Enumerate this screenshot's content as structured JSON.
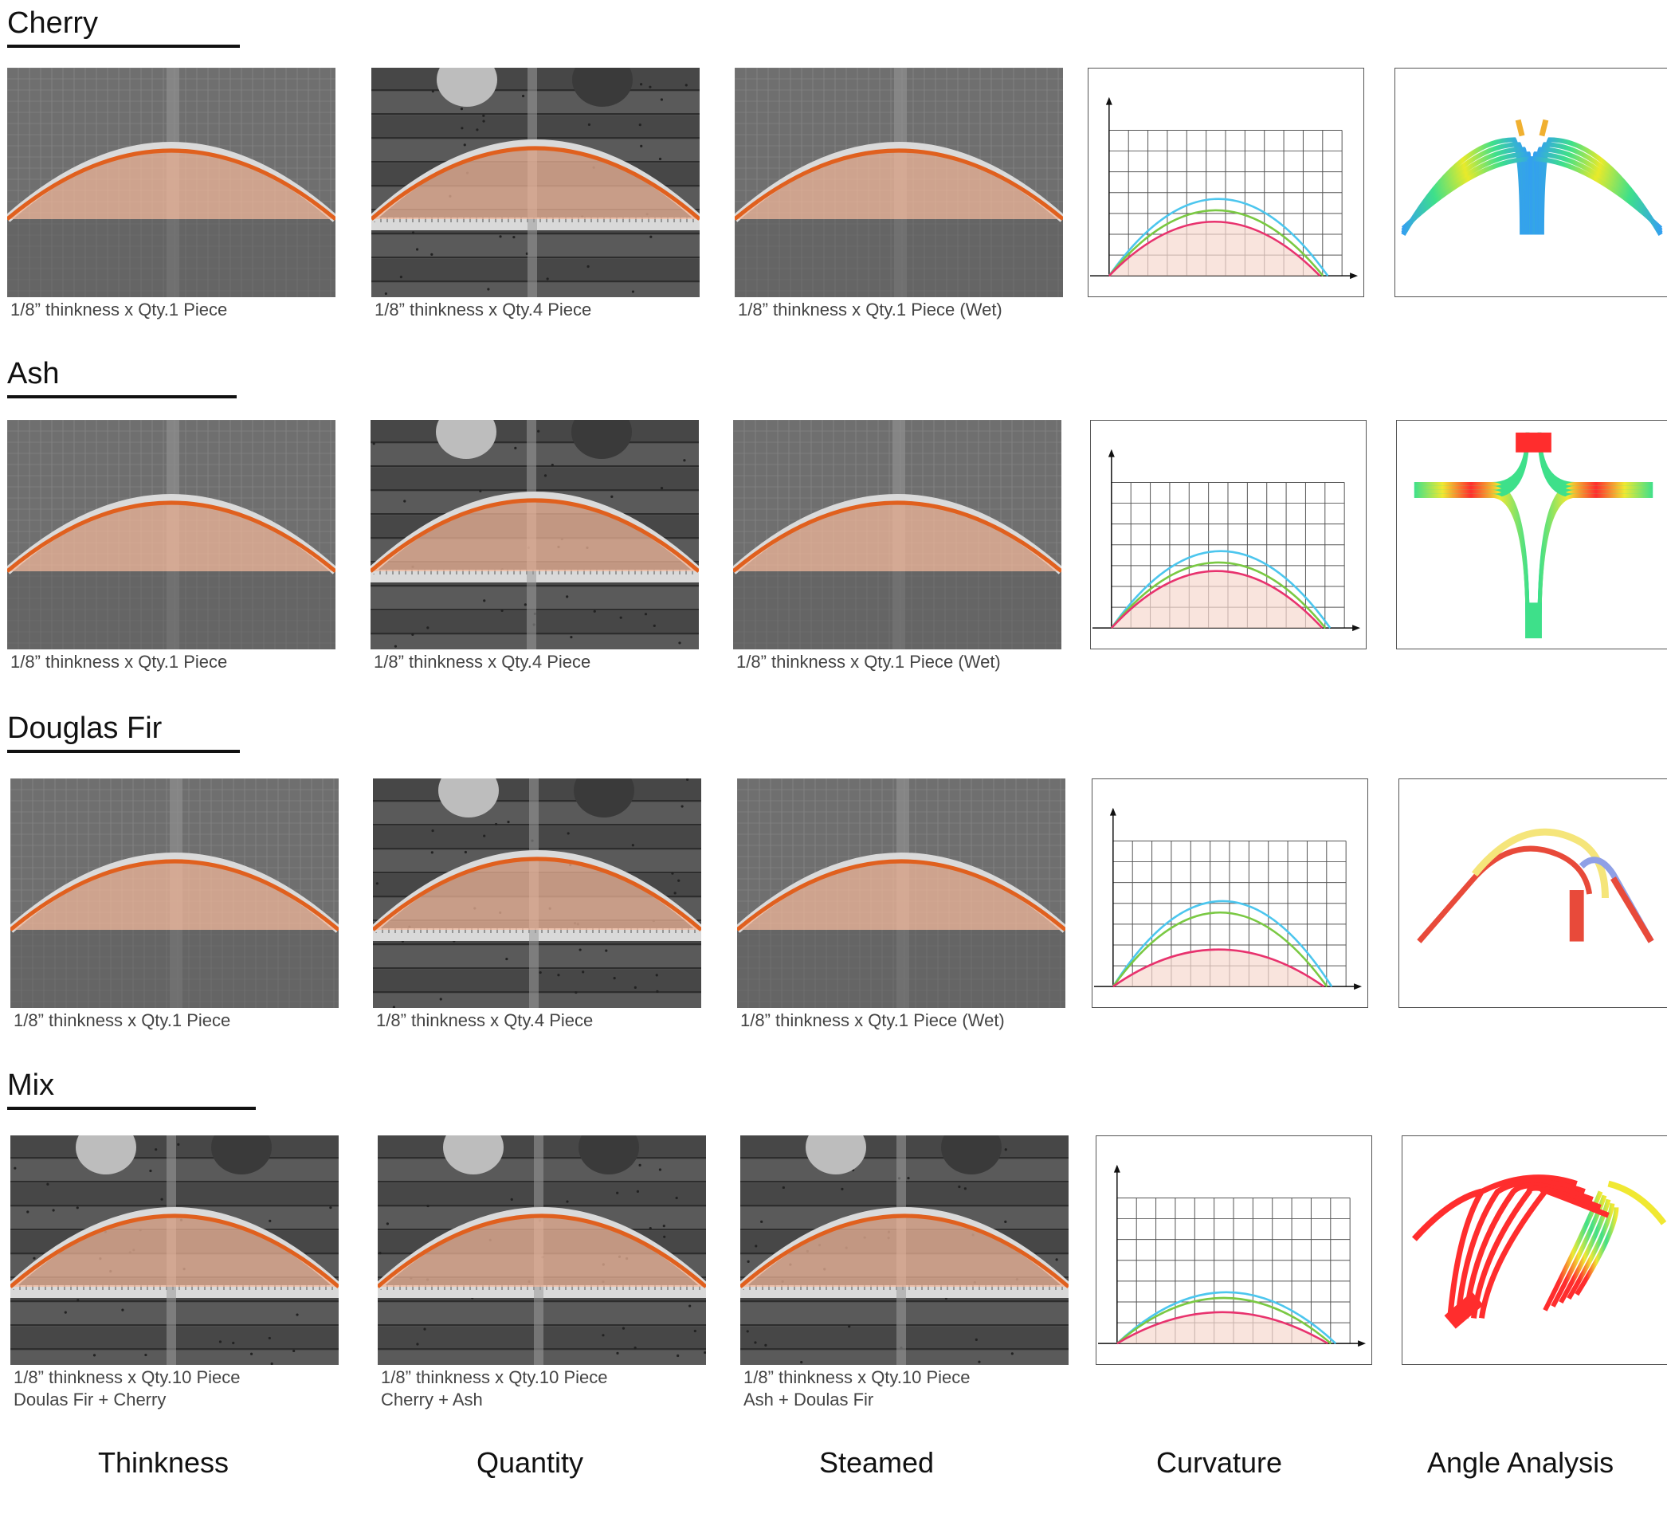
{
  "sections": [
    {
      "wood": "Cherry",
      "captions": [
        [
          "1/8” thinkness x Qty.1 Piece"
        ],
        [
          "1/8” thinkness x Qty.4 Piece"
        ],
        [
          "1/8” thinkness x Qty.1 Piece (Wet)"
        ]
      ]
    },
    {
      "wood": "Ash",
      "captions": [
        [
          "1/8” thinkness x Qty.1 Piece"
        ],
        [
          "1/8” thinkness x Qty.4 Piece"
        ],
        [
          "1/8” thinkness x Qty.1 Piece (Wet)"
        ]
      ]
    },
    {
      "wood": "Douglas Fir",
      "captions": [
        [
          "1/8” thinkness x Qty.1 Piece"
        ],
        [
          "1/8” thinkness x Qty.4 Piece"
        ],
        [
          "1/8” thinkness x Qty.1 Piece (Wet)"
        ]
      ]
    },
    {
      "wood": "Mix",
      "captions": [
        [
          "1/8” thinkness x Qty.10 Piece",
          "Doulas Fir + Cherry"
        ],
        [
          "1/8” thinkness x Qty.10 Piece",
          "Cherry + Ash"
        ],
        [
          "1/8” thinkness x Qty.10 Piece",
          "Ash + Doulas Fir"
        ]
      ]
    }
  ],
  "column_labels": [
    "Thinkness",
    "Quantity",
    "Steamed",
    "Curvature",
    "Angle Analysis"
  ],
  "colors": {
    "overlay_fill": "#f2b79a",
    "overlay_stroke": "#e0601e",
    "curve_blue": "#4cc6ee",
    "curve_green": "#7ac943",
    "curve_red": "#e8336e",
    "grid": "#555555"
  },
  "chart_data": [
    {
      "type": "line",
      "series": [
        {
          "values": [
            0,
            1.0,
            1.35,
            0
          ]
        },
        {
          "values": [
            0,
            0.85,
            1.15,
            0
          ]
        },
        {
          "values": [
            0,
            0.7,
            0.95,
            0
          ]
        }
      ],
      "grid": true
    },
    {
      "type": "line",
      "series": [
        {
          "values": [
            0,
            0.95,
            1.35,
            0
          ]
        },
        {
          "values": [
            0,
            0.82,
            1.15,
            0
          ]
        },
        {
          "values": [
            0,
            0.7,
            1.0,
            0
          ]
        }
      ],
      "grid": true
    },
    {
      "type": "line",
      "series": [
        {
          "values": [
            0,
            1.15,
            1.5,
            0
          ]
        },
        {
          "values": [
            0,
            1.0,
            1.3,
            0
          ]
        },
        {
          "values": [
            0,
            0.55,
            0.65,
            0
          ]
        }
      ],
      "grid": true
    },
    {
      "type": "line",
      "series": [
        {
          "values": [
            0,
            0.75,
            0.9,
            0
          ]
        },
        {
          "values": [
            0,
            0.65,
            0.8,
            0
          ]
        },
        {
          "values": [
            0,
            0.45,
            0.55,
            0
          ]
        }
      ],
      "grid": true
    }
  ]
}
